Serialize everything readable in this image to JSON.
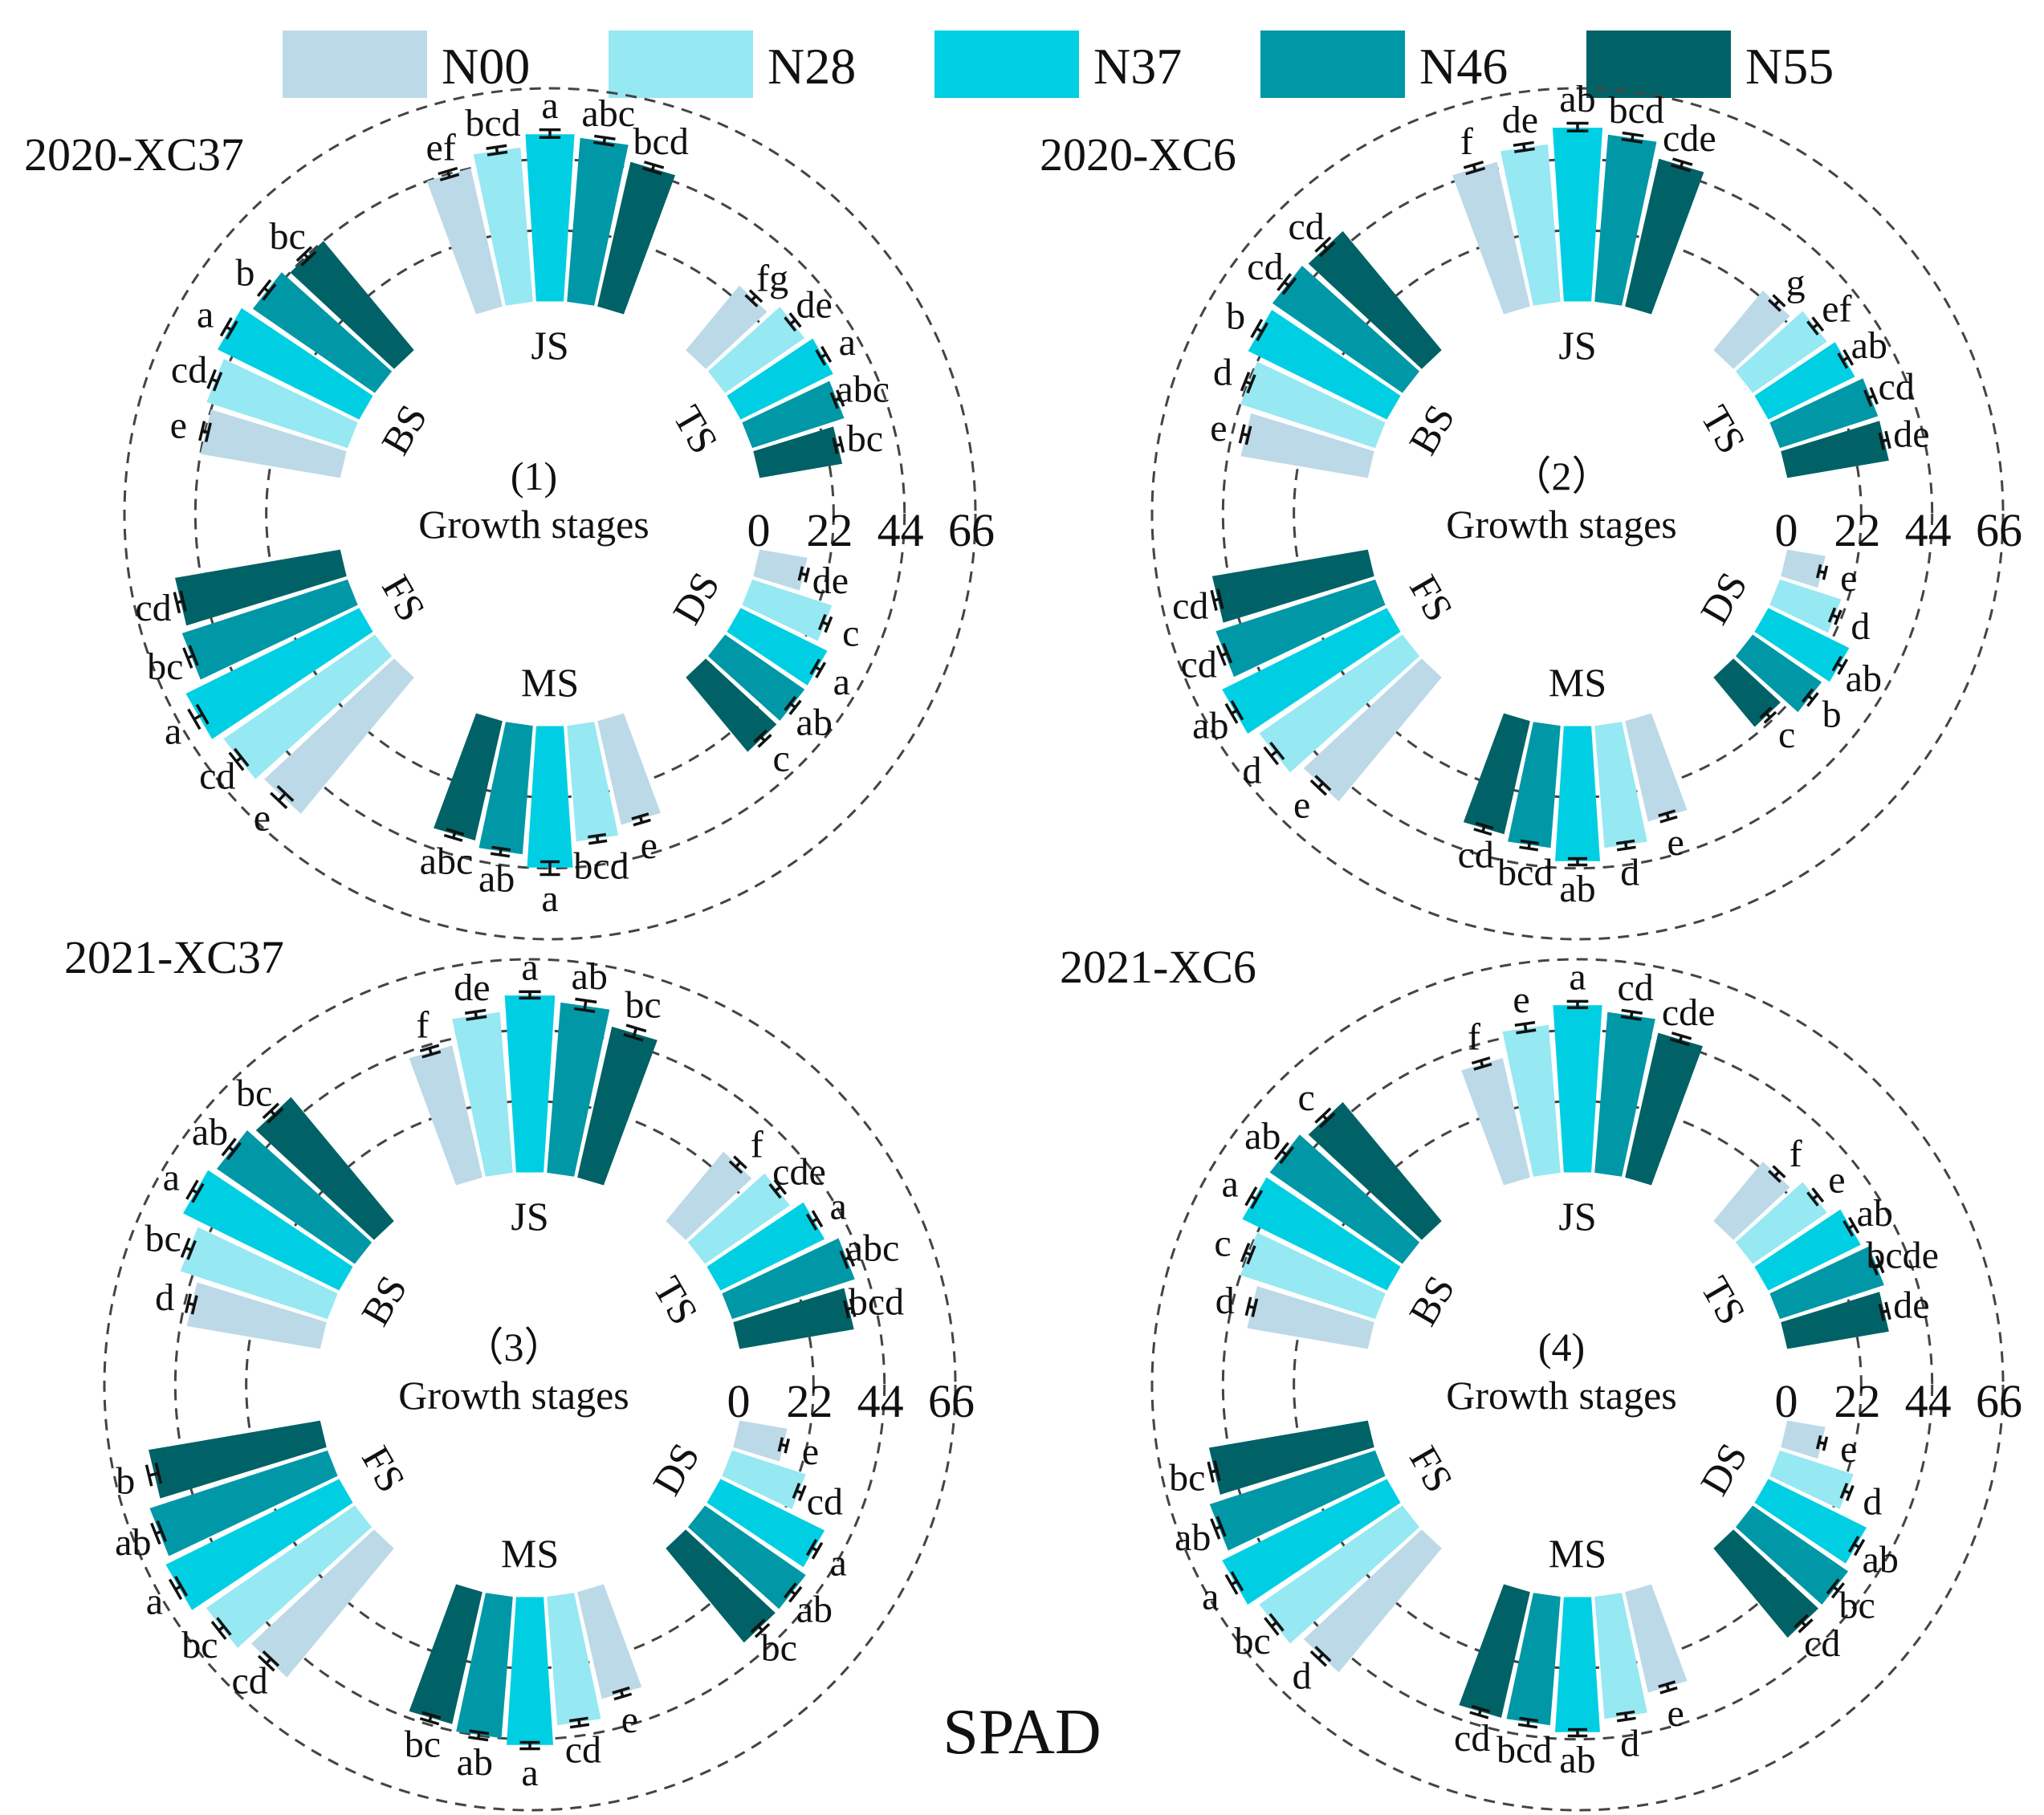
{
  "legend": [
    {
      "label": "N00",
      "color": "#bcd9e8"
    },
    {
      "label": "N28",
      "color": "#96e8f2"
    },
    {
      "label": "N37",
      "color": "#00cfe3"
    },
    {
      "label": "N46",
      "color": "#0098a6"
    },
    {
      "label": "N55",
      "color": "#006266"
    }
  ],
  "x_title": "SPAD",
  "center_label": "Growth stages",
  "chart_data": [
    {
      "type": "circular-bar",
      "title": "2020-XC37",
      "panel_label": "(1)",
      "radial_ticks": [
        "0",
        "22",
        "44",
        "66"
      ],
      "ylim": [
        0,
        66
      ],
      "stages": [
        {
          "name": "JS",
          "values": [
            44,
            48,
            52,
            51,
            46
          ],
          "errors": [
            1.0,
            1.0,
            1.2,
            1.0,
            1.0
          ],
          "letters": [
            "ef",
            "bcd",
            "a",
            "abc",
            "bcd"
          ]
        },
        {
          "name": "TS",
          "values": [
            26,
            30,
            32,
            30,
            26
          ],
          "errors": [
            1.0,
            1.0,
            1.0,
            1.0,
            1.0
          ],
          "letters": [
            "fg",
            "de",
            "a",
            "abc",
            "bc"
          ]
        },
        {
          "name": "DS",
          "values": [
            15,
            26,
            30,
            30,
            30
          ],
          "errors": [
            1.0,
            1.0,
            1.0,
            1.0,
            1.0
          ],
          "letters": [
            "de",
            "c",
            "a",
            "ab",
            "c"
          ]
        },
        {
          "name": "MS",
          "values": [
            33,
            36,
            44,
            40,
            38
          ],
          "errors": [
            1.0,
            1.0,
            2.0,
            1.0,
            1.0
          ],
          "letters": [
            "e",
            "bcd",
            "a",
            "ab",
            "abc"
          ]
        },
        {
          "name": "FS",
          "values": [
            55,
            57,
            60,
            54,
            52
          ],
          "errors": [
            1.5,
            1.0,
            1.5,
            1.0,
            1.0
          ],
          "letters": [
            "e",
            "cd",
            "a",
            "bc",
            "cd"
          ]
        },
        {
          "name": "BS",
          "values": [
            44,
            46,
            49,
            46,
            44
          ],
          "errors": [
            1.0,
            1.0,
            1.0,
            1.0,
            1.0
          ],
          "letters": [
            "e",
            "cd",
            "a",
            "b",
            "bc"
          ]
        }
      ]
    },
    {
      "type": "circular-bar",
      "title": "2020-XC6",
      "panel_label": "（2）",
      "radial_ticks": [
        "0",
        "22",
        "44",
        "66"
      ],
      "ylim": [
        0,
        66
      ],
      "stages": [
        {
          "name": "JS",
          "values": [
            46,
            49,
            54,
            52,
            47
          ],
          "errors": [
            1.0,
            1.0,
            1.2,
            1.0,
            1.0
          ],
          "letters": [
            "f",
            "de",
            "ab",
            "bcd",
            "cde"
          ]
        },
        {
          "name": "TS",
          "values": [
            24,
            28,
            30,
            32,
            32
          ],
          "errors": [
            1.0,
            1.0,
            1.0,
            1.0,
            1.0
          ],
          "letters": [
            "g",
            "ef",
            "ab",
            "cd",
            "de"
          ]
        },
        {
          "name": "DS",
          "values": [
            12,
            20,
            28,
            26,
            20
          ],
          "errors": [
            1.0,
            1.0,
            1.0,
            1.0,
            1.0
          ],
          "letters": [
            "e",
            "d",
            "ab",
            "b",
            "c"
          ]
        },
        {
          "name": "MS",
          "values": [
            32,
            38,
            42,
            38,
            36
          ],
          "errors": [
            1.0,
            1.0,
            1.0,
            1.0,
            1.0
          ],
          "letters": [
            "e",
            "d",
            "ab",
            "bcd",
            "cd"
          ]
        },
        {
          "name": "FS",
          "values": [
            50,
            54,
            57,
            52,
            49
          ],
          "errors": [
            1.0,
            1.2,
            1.0,
            1.0,
            1.0
          ],
          "letters": [
            "e",
            "d",
            "ab",
            "cd",
            "cd"
          ]
        },
        {
          "name": "BS",
          "values": [
            40,
            44,
            48,
            49,
            48
          ],
          "errors": [
            1.0,
            1.0,
            1.0,
            1.0,
            1.0
          ],
          "letters": [
            "e",
            "d",
            "b",
            "cd",
            "cd"
          ]
        }
      ]
    },
    {
      "type": "circular-bar",
      "title": "2021-XC37",
      "panel_label": "（3）",
      "radial_ticks": [
        "0",
        "22",
        "44",
        "66"
      ],
      "ylim": [
        0,
        66
      ],
      "stages": [
        {
          "name": "JS",
          "values": [
            42,
            50,
            55,
            53,
            48
          ],
          "errors": [
            1.0,
            1.0,
            1.0,
            1.5,
            1.5
          ],
          "letters": [
            "f",
            "de",
            "a",
            "ab",
            "bc"
          ]
        },
        {
          "name": "TS",
          "values": [
            28,
            32,
            36,
            40,
            36
          ],
          "errors": [
            1.0,
            1.0,
            1.0,
            1.0,
            1.0
          ],
          "letters": [
            "f",
            "cde",
            "a",
            "abc",
            "bcd"
          ]
        },
        {
          "name": "DS",
          "values": [
            15,
            24,
            36,
            38,
            38
          ],
          "errors": [
            1.0,
            1.0,
            1.0,
            1.0,
            1.0
          ],
          "letters": [
            "e",
            "cd",
            "a",
            "ab",
            "bc"
          ]
        },
        {
          "name": "MS",
          "values": [
            34,
            40,
            46,
            44,
            42
          ],
          "errors": [
            1.0,
            1.0,
            1.0,
            1.0,
            1.0
          ],
          "letters": [
            "e",
            "cd",
            "a",
            "ab",
            "bc"
          ]
        },
        {
          "name": "FS",
          "values": [
            52,
            56,
            60,
            58,
            54
          ],
          "errors": [
            1.0,
            1.0,
            1.0,
            1.0,
            1.5
          ],
          "letters": [
            "cd",
            "bc",
            "a",
            "ab",
            "b"
          ]
        },
        {
          "name": "BS",
          "values": [
            42,
            48,
            54,
            52,
            50
          ],
          "errors": [
            1.0,
            1.0,
            1.0,
            1.0,
            1.0
          ],
          "letters": [
            "d",
            "bc",
            "a",
            "ab",
            "bc"
          ]
        }
      ]
    },
    {
      "type": "circular-bar",
      "title": "2021-XC6",
      "panel_label": "(4)",
      "radial_ticks": [
        "0",
        "22",
        "44",
        "66"
      ],
      "ylim": [
        0,
        66
      ],
      "stages": [
        {
          "name": "JS",
          "values": [
            38,
            46,
            52,
            50,
            46
          ],
          "errors": [
            1.0,
            1.2,
            1.0,
            1.0,
            1.0
          ],
          "letters": [
            "f",
            "e",
            "a",
            "cd",
            "cde"
          ]
        },
        {
          "name": "TS",
          "values": [
            24,
            28,
            32,
            34,
            32
          ],
          "errors": [
            1.0,
            1.0,
            1.0,
            1.0,
            1.0
          ],
          "letters": [
            "f",
            "e",
            "ab",
            "bcde",
            "de"
          ]
        },
        {
          "name": "DS",
          "values": [
            12,
            24,
            34,
            36,
            36
          ],
          "errors": [
            1.0,
            1.0,
            1.0,
            1.0,
            1.0
          ],
          "letters": [
            "e",
            "d",
            "ab",
            "bc",
            "cd"
          ]
        },
        {
          "name": "MS",
          "values": [
            32,
            38,
            42,
            40,
            40
          ],
          "errors": [
            1.0,
            1.0,
            1.0,
            1.0,
            1.0
          ],
          "letters": [
            "e",
            "d",
            "ab",
            "bcd",
            "cd"
          ]
        },
        {
          "name": "FS",
          "values": [
            50,
            54,
            57,
            54,
            50
          ],
          "errors": [
            1.0,
            1.0,
            1.0,
            1.0,
            1.0
          ],
          "letters": [
            "d",
            "bc",
            "a",
            "ab",
            "bc"
          ]
        },
        {
          "name": "BS",
          "values": [
            38,
            44,
            50,
            50,
            48
          ],
          "errors": [
            1.0,
            1.0,
            1.0,
            1.0,
            1.0
          ],
          "letters": [
            "d",
            "c",
            "a",
            "ab",
            "c"
          ]
        }
      ]
    }
  ]
}
